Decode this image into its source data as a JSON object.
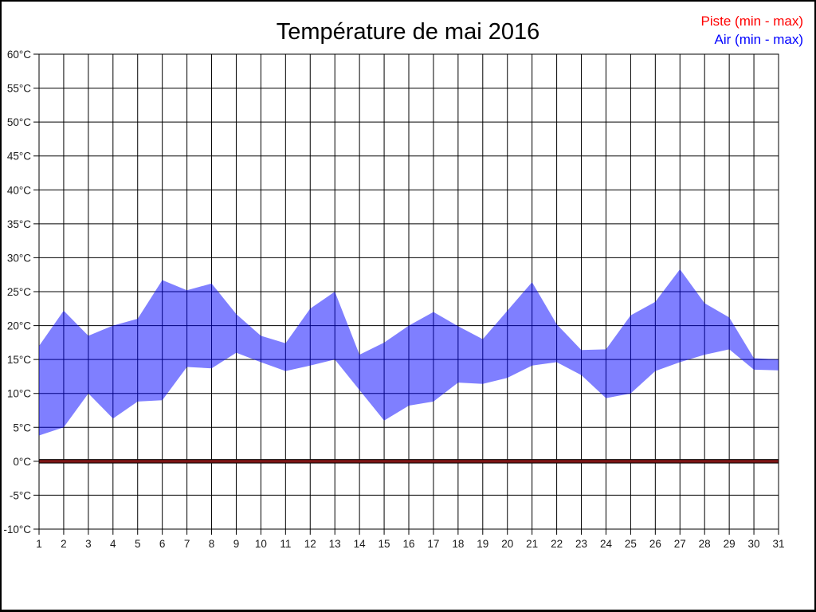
{
  "chart_data": {
    "type": "area",
    "title": "Température de mai 2016",
    "x": [
      1,
      2,
      3,
      4,
      5,
      6,
      7,
      8,
      9,
      10,
      11,
      12,
      13,
      14,
      15,
      16,
      17,
      18,
      19,
      20,
      21,
      22,
      23,
      24,
      25,
      26,
      27,
      28,
      29,
      30,
      31
    ],
    "xlabel": "",
    "ylabel": "",
    "ylim": [
      -10,
      60
    ],
    "y_step": 5,
    "y_tick_suffix": "°C",
    "grid": true,
    "legend_position": "top-right",
    "series": [
      {
        "name": "Piste (min - max)",
        "color": "#ff0000",
        "band_color": "#7d1616",
        "min": [
          0,
          0,
          0,
          0,
          0,
          0,
          0,
          0,
          0,
          0,
          0,
          0,
          0,
          0,
          0,
          0,
          0,
          0,
          0,
          0,
          0,
          0,
          0,
          0,
          0,
          0,
          0,
          0,
          0,
          0,
          0
        ],
        "max": [
          0,
          0,
          0,
          0,
          0,
          0,
          0,
          0,
          0,
          0,
          0,
          0,
          0,
          0,
          0,
          0,
          0,
          0,
          0,
          0,
          0,
          0,
          0,
          0,
          0,
          0,
          0,
          0,
          0,
          0,
          0
        ]
      },
      {
        "name": "Air (min - max)",
        "color": "#0000ff",
        "band_color": "rgba(0,0,255,0.5)",
        "min": [
          3.8,
          5,
          10,
          6.3,
          8.8,
          9,
          13.9,
          13.7,
          16,
          14.6,
          13.3,
          14.1,
          15,
          10.5,
          6,
          8.2,
          8.8,
          11.6,
          11.4,
          12.3,
          14.1,
          14.6,
          12.7,
          9.3,
          10,
          13.3,
          14.6,
          15.7,
          16.5,
          13.5,
          13.4
        ],
        "max": [
          17,
          22.2,
          18.5,
          20,
          21,
          26.7,
          25.2,
          26.2,
          21.7,
          18.5,
          17.4,
          22.5,
          25,
          15.7,
          17.5,
          20,
          22,
          19.9,
          18,
          22.2,
          26.4,
          20.2,
          16.4,
          16.5,
          21.5,
          23.5,
          28.3,
          23.3,
          21.2,
          15.2,
          15
        ]
      }
    ]
  }
}
